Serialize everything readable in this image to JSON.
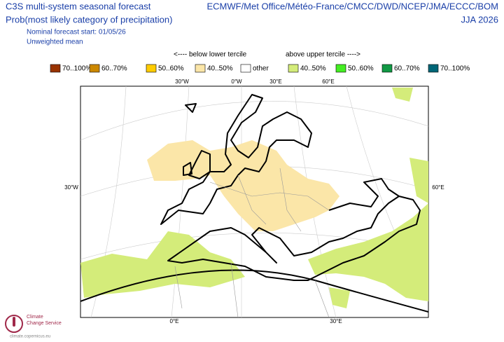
{
  "header": {
    "title": "C3S multi-system seasonal forecast",
    "centres": "ECMWF/Met Office/Météo-France/CMCC/DWD/NCEP/JMA/ECCC/BOM",
    "subtitle": "Prob(most likely category of precipitation)",
    "season": "JJA 2026",
    "start": "Nominal forecast start: 01/05/26",
    "method": "Unweighted mean"
  },
  "legend": {
    "below_heading": "<---- below lower tercile",
    "above_heading": "above upper tercile ---->",
    "items": [
      {
        "label": "70..100%",
        "color": "#993300"
      },
      {
        "label": "60..70%",
        "color": "#cc8800"
      },
      {
        "label": "50..60%",
        "color": "#ffcc00"
      },
      {
        "label": "40..50%",
        "color": "#fbe6a8"
      },
      {
        "label": "other",
        "color": "#ffffff"
      },
      {
        "label": "40..50%",
        "color": "#d4ec7a"
      },
      {
        "label": "50..60%",
        "color": "#44ee22"
      },
      {
        "label": "60..70%",
        "color": "#119944"
      },
      {
        "label": "70..100%",
        "color": "#006677"
      }
    ]
  },
  "map": {
    "top_labels": [
      "30°W",
      "0°W",
      "30°E",
      "60°E"
    ],
    "left_label": "30°W",
    "right_label": "60°E",
    "bottom_labels": [
      "0°E",
      "30°E"
    ]
  },
  "logo": {
    "line1": "Climate",
    "line2": "Change Service",
    "url": "climate.copernicus.eu"
  }
}
